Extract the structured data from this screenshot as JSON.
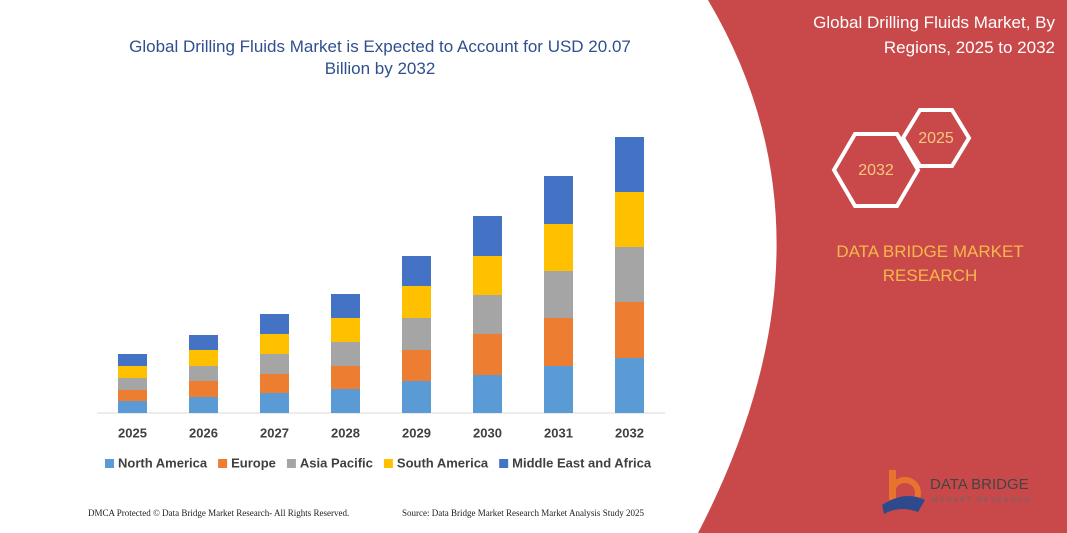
{
  "chart_data": {
    "type": "stacked-bar",
    "title": "Global Drilling Fluids Market is Expected to Account for USD 20.07 Billion by 2032",
    "categories": [
      "2025",
      "2026",
      "2027",
      "2028",
      "2029",
      "2030",
      "2031",
      "2032"
    ],
    "series": [
      {
        "name": "North America",
        "color": "#5b9bd5",
        "values": [
          12,
          16,
          20,
          24,
          32,
          38,
          47,
          55
        ]
      },
      {
        "name": "Europe",
        "color": "#ed7d31",
        "values": [
          11,
          16,
          19,
          23,
          31,
          41,
          48,
          56
        ]
      },
      {
        "name": "Asia Pacific",
        "color": "#a5a5a5",
        "values": [
          12,
          15,
          20,
          24,
          32,
          39,
          47,
          55
        ]
      },
      {
        "name": "South America",
        "color": "#ffc000",
        "values": [
          12,
          16,
          20,
          24,
          32,
          39,
          47,
          55
        ]
      },
      {
        "name": "Middle East and Africa",
        "color": "#4472c4",
        "values": [
          12,
          15,
          20,
          24,
          30,
          40,
          48,
          55
        ]
      }
    ],
    "ylim": [
      0,
      280
    ],
    "legend": "bottom"
  },
  "panel": {
    "title": "Global Drilling Fluids Market, By Regions, 2025 to 2032",
    "hex_small": "2025",
    "hex_large": "2032",
    "brand": "DATA BRIDGE MARKET RESEARCH"
  },
  "logo": {
    "name": "DATA BRIDGE",
    "tagline": "MARKET RESEARCH"
  },
  "footer": {
    "copyright": "DMCA Protected © Data Bridge Market Research- All Rights Reserved.",
    "source": "Source: Data Bridge Market Research  Market Analysis Study 2025"
  }
}
